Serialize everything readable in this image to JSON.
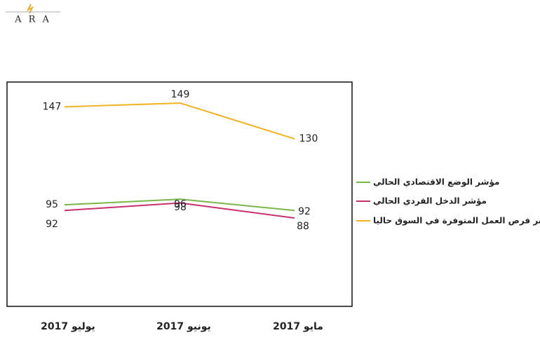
{
  "logo": "A R A",
  "chart_data": {
    "type": "line",
    "categories": [
      "يوليو 2017",
      "يونيو 2017",
      "مايو 2017"
    ],
    "series": [
      {
        "name": "مؤشر الوضع الاقتصادي الحالي",
        "color": "#7ab648",
        "values": [
          95,
          98,
          92
        ]
      },
      {
        "name": "مؤشر الدخل الفردي الحالي",
        "color": "#c8306e",
        "values": [
          92,
          96,
          88
        ]
      },
      {
        "name": "مؤشر فرص العمل المتوفرة في السوق حاليا",
        "color": "#f0b323",
        "values": [
          147,
          149,
          130
        ]
      }
    ],
    "legend": "right",
    "grid": false
  }
}
